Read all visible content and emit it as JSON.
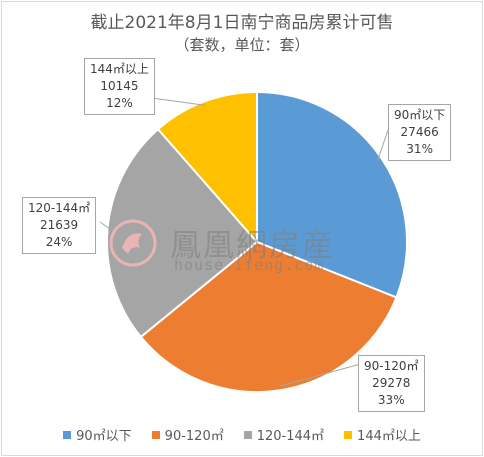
{
  "chart_data": {
    "type": "pie",
    "title": "截止2021年8月1日南宁商品房累计可售",
    "subtitle": "（套数，单位：套）",
    "slices": [
      {
        "label": "90㎡以下",
        "value": 27466,
        "percent": "31%",
        "color": "#5b9bd5"
      },
      {
        "label": "90-120㎡",
        "value": 29278,
        "percent": "33%",
        "color": "#ed7d31"
      },
      {
        "label": "120-144㎡",
        "value": 21639,
        "percent": "24%",
        "color": "#a5a5a5"
      },
      {
        "label": "144㎡以上",
        "value": 10145,
        "percent": "12%",
        "color": "#ffc000"
      }
    ],
    "legend_position": "bottom"
  },
  "watermark": {
    "brand": "鳳凰網房産",
    "site": "house.ifeng.com"
  }
}
